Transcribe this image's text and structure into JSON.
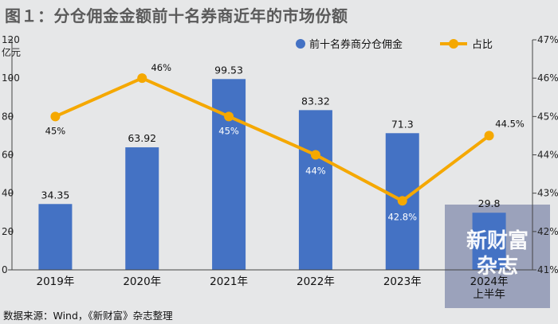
{
  "title": "图１：分仓佣金金额前十名券商近年的市场份额",
  "source": "数据来源：Wind，《新财富》杂志整理",
  "watermark": [
    "新财富",
    "杂志"
  ],
  "colors": {
    "bar": "#4472c4",
    "line": "#f5a800",
    "background": "#e6e7e8"
  },
  "chart_data": {
    "type": "bar+line",
    "categories": [
      "2019年",
      "2020年",
      "2021年",
      "2022年",
      "2023年",
      "2024年上半年"
    ],
    "category_lines": [
      [
        "2019年"
      ],
      [
        "2020年"
      ],
      [
        "2021年"
      ],
      [
        "2022年"
      ],
      [
        "2023年"
      ],
      [
        "2024年",
        "上半年"
      ]
    ],
    "series": [
      {
        "name": "前十名券商分仓佣金",
        "type": "bar",
        "axis": "left",
        "values": [
          34.35,
          63.92,
          99.53,
          83.32,
          71.3,
          29.8
        ],
        "labels": [
          "34.35",
          "63.92",
          "99.53",
          "83.32",
          "71.3",
          "29.8"
        ]
      },
      {
        "name": "占比",
        "type": "line",
        "axis": "right",
        "values": [
          45,
          46,
          45,
          44,
          42.8,
          44.5
        ],
        "labels": [
          "45%",
          "46%",
          "45%",
          "44%",
          "42.8%",
          "44.5%"
        ]
      }
    ],
    "y_left": {
      "unit": "亿元",
      "min": 0,
      "max": 120,
      "ticks": [
        "0",
        "20",
        "40",
        "60",
        "80",
        "100",
        "120"
      ]
    },
    "y_right": {
      "min": 41,
      "max": 47,
      "ticks": [
        "41%",
        "42%",
        "43%",
        "44%",
        "45%",
        "46%",
        "47%"
      ]
    },
    "legend": [
      "前十名券商分仓佣金",
      "占比"
    ]
  }
}
